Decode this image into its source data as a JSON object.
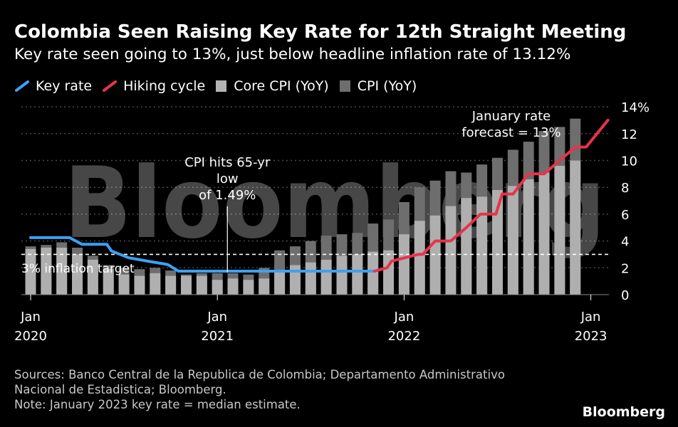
{
  "title": "Colombia Seen Raising Key Rate for 12th Straight Meeting",
  "subtitle": "Key rate seen going to 13%, just below headline inflation rate of 13.12%",
  "legend": [
    {
      "name": "Key rate",
      "color": "#3da0f5",
      "kind": "line"
    },
    {
      "name": "Hiking cycle",
      "color": "#e8334a",
      "kind": "line"
    },
    {
      "name": "Core CPI (YoY)",
      "color": "#b4b4b4",
      "kind": "box"
    },
    {
      "name": "CPI (YoY)",
      "color": "#6e6e6e",
      "kind": "box"
    }
  ],
  "sources": [
    "Sources: Banco Central de la Republica de Colombia; Departamento Administrativo",
    "Nacional de Estadistica; Bloomberg.",
    "Note: January 2023 key rate = median estimate."
  ],
  "brand": "Bloomberg",
  "chart_data": {
    "type": "bar",
    "title": "Colombia Seen Raising Key Rate for 12th Straight Meeting",
    "ylim": [
      0,
      14
    ],
    "yticks": [
      0,
      2,
      4,
      6,
      8,
      10,
      12,
      14
    ],
    "ytick_labels": [
      "0",
      "2",
      "4",
      "6",
      "8",
      "10",
      "12",
      "14%"
    ],
    "xticks": [
      {
        "month_index": 0,
        "month": "Jan",
        "year": "2020"
      },
      {
        "month_index": 12,
        "month": "Jan",
        "year": "2021"
      },
      {
        "month_index": 24,
        "month": "Jan",
        "year": "2022"
      },
      {
        "month_index": 36,
        "month": "Jan",
        "year": "2023"
      }
    ],
    "months": [
      "2020-01",
      "2020-02",
      "2020-03",
      "2020-04",
      "2020-05",
      "2020-06",
      "2020-07",
      "2020-08",
      "2020-09",
      "2020-10",
      "2020-11",
      "2020-12",
      "2021-01",
      "2021-02",
      "2021-03",
      "2021-04",
      "2021-05",
      "2021-06",
      "2021-07",
      "2021-08",
      "2021-09",
      "2021-10",
      "2021-11",
      "2021-12",
      "2022-01",
      "2022-02",
      "2022-03",
      "2022-04",
      "2022-05",
      "2022-06",
      "2022-07",
      "2022-08",
      "2022-09",
      "2022-10",
      "2022-11",
      "2022-12"
    ],
    "series": [
      {
        "name": "CPI (YoY)",
        "values": [
          3.6,
          3.7,
          3.9,
          3.5,
          2.9,
          2.2,
          2.0,
          1.9,
          2.0,
          1.8,
          1.5,
          1.6,
          1.6,
          1.6,
          1.5,
          2.0,
          3.3,
          3.6,
          4.0,
          4.4,
          4.5,
          4.6,
          5.3,
          5.6,
          6.9,
          8.0,
          8.5,
          9.2,
          9.1,
          9.7,
          10.2,
          10.8,
          11.4,
          12.2,
          12.5,
          13.12
        ]
      },
      {
        "name": "Core CPI (YoY)",
        "values": [
          3.4,
          3.5,
          3.5,
          3.0,
          2.6,
          1.9,
          1.5,
          1.4,
          1.6,
          1.4,
          1.4,
          1.4,
          1.1,
          1.2,
          1.1,
          1.2,
          1.8,
          2.2,
          2.4,
          2.6,
          2.9,
          3.0,
          3.2,
          3.3,
          4.5,
          5.5,
          5.9,
          6.6,
          7.2,
          7.3,
          7.8,
          8.1,
          8.6,
          9.1,
          9.6,
          10.0
        ]
      },
      {
        "name": "Key rate",
        "points": [
          [
            0,
            4.25
          ],
          [
            2.5,
            4.25
          ],
          [
            3.3,
            3.75
          ],
          [
            4.9,
            3.75
          ],
          [
            5.2,
            3.25
          ],
          [
            6.3,
            2.75
          ],
          [
            7.5,
            2.5
          ],
          [
            8.8,
            2.25
          ],
          [
            9.5,
            1.75
          ],
          [
            22.1,
            1.75
          ]
        ]
      },
      {
        "name": "Hiking cycle",
        "points": [
          [
            22.1,
            1.75
          ],
          [
            22.9,
            2.0
          ],
          [
            23.2,
            2.5
          ],
          [
            24.9,
            3.0
          ],
          [
            25.2,
            3.0
          ],
          [
            26.0,
            4.0
          ],
          [
            27.0,
            4.0
          ],
          [
            28.0,
            5.0
          ],
          [
            28.9,
            6.0
          ],
          [
            29.9,
            6.0
          ],
          [
            30.3,
            7.5
          ],
          [
            31.0,
            7.5
          ],
          [
            32.0,
            9.0
          ],
          [
            33.0,
            9.0
          ],
          [
            34.0,
            10.0
          ],
          [
            35.0,
            11.0
          ],
          [
            35.7,
            11.0
          ],
          [
            37.1,
            13.0
          ]
        ]
      }
    ],
    "reference_line": {
      "value": 3,
      "label": "3% inflation target"
    },
    "annotations": [
      {
        "text": [
          "CPI hits 65-yr",
          "low",
          "of 1.49%"
        ],
        "x": 11.5
      },
      {
        "text": [
          "January rate",
          "forecast = 13%"
        ],
        "x": 37.1
      }
    ],
    "watermark": "Bloomberg"
  }
}
